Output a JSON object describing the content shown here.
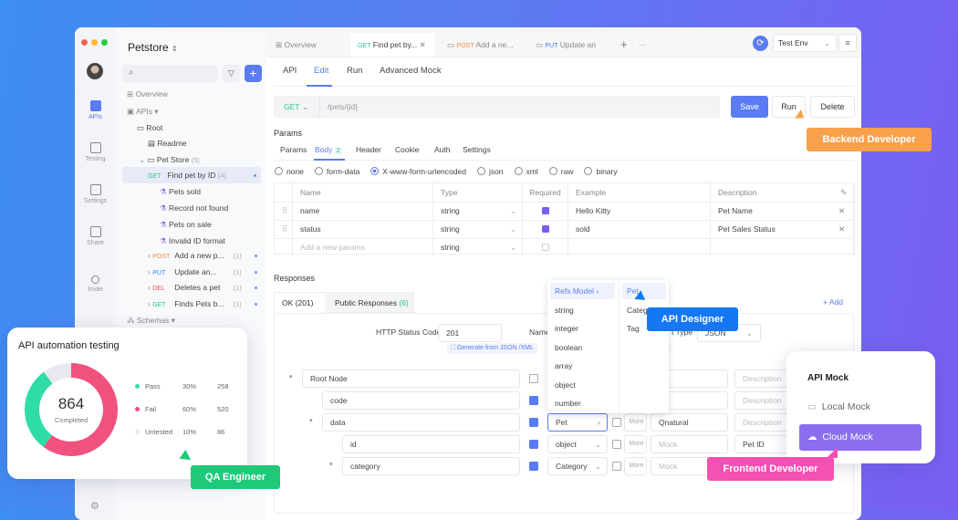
{
  "project": {
    "name": "Petstore"
  },
  "rail": [
    {
      "label": "APIs",
      "active": true
    },
    {
      "label": "Testing"
    },
    {
      "label": "Settings"
    },
    {
      "label": "Share"
    },
    {
      "label": "Invite"
    }
  ],
  "sidebar": {
    "search_placeholder": "",
    "overview": "Overview",
    "apis": "APIs",
    "root": "Root",
    "readme": "Readme",
    "pet_store": "Pet Store",
    "pet_store_count": "(5)",
    "selected": {
      "method": "GET",
      "name": "Find pet by ID",
      "count": "(4)"
    },
    "cases": [
      "Pets sold",
      "Record not found",
      "Pets on sale",
      "Invalid ID format"
    ],
    "endpoints": [
      {
        "method": "POST",
        "name": "Add a new p...",
        "count": "(1)"
      },
      {
        "method": "PUT",
        "name": "Update an...",
        "count": "(1)"
      },
      {
        "method": "DEL",
        "name": "Deletes a pet",
        "count": "(1)"
      },
      {
        "method": "GET",
        "name": "Finds Pets b...",
        "count": "(1)"
      }
    ],
    "schemas": "Schemas"
  },
  "tabs": {
    "overview": "Overview",
    "t1_method": "GET",
    "t1_name": "Find pet by...",
    "t2_method": "POST",
    "t2_name": "Add a ne...",
    "t3_method": "PUT",
    "t3_name": "Update an",
    "env": "Test Env"
  },
  "subtabs": [
    "API",
    "Edit",
    "Run",
    "Advanced Mock"
  ],
  "request": {
    "method": "GET",
    "path": "/pets/{id}",
    "save": "Save",
    "run": "Run",
    "delete": "Delete"
  },
  "params": {
    "title": "Params",
    "tabs": [
      "Params",
      "Body",
      "Header",
      "Cookie",
      "Auth",
      "Settings"
    ],
    "body_count": "2",
    "body_types": [
      "none",
      "form-data",
      "X-www-form-urlencoded",
      "json",
      "xml",
      "raw",
      "binary"
    ],
    "selected_body_type": "X-www-form-urlencoded",
    "columns": [
      "Name",
      "Type",
      "Required",
      "Example",
      "Description"
    ],
    "rows": [
      {
        "name": "name",
        "type": "string",
        "required": true,
        "example": "Hello Kitty",
        "description": "Pet Name"
      },
      {
        "name": "status",
        "type": "string",
        "required": true,
        "example": "sold",
        "description": "Pet Sales Status"
      }
    ],
    "new_placeholder": "Add a new params",
    "new_type": "string"
  },
  "responses": {
    "title": "Responses",
    "tab1": "OK (201)",
    "tab2": "Public Responses",
    "tab2_count": "(6)",
    "add": "+ Add",
    "status_label": "HTTP Status Code",
    "status_value": "201",
    "name_label": "Name",
    "content_type_label": "t Type",
    "content_type": "JSON",
    "generate": "Generate from JSON /XML",
    "generate2": "ate",
    "tree": [
      {
        "name": "Root Node",
        "required": false,
        "type": "",
        "mock": "ck",
        "description": "Description"
      },
      {
        "name": "code",
        "required": true,
        "type": "",
        "mock": "ck",
        "description": "Description"
      },
      {
        "name": "data",
        "required": true,
        "type": "Pet",
        "mock": "Qnatural",
        "description": "Description"
      },
      {
        "name": "id",
        "required": true,
        "type": "object",
        "mock": "Mock",
        "description": "Pet ID"
      },
      {
        "name": "category",
        "required": true,
        "type": "Category",
        "mock": "Mock",
        "description": ""
      }
    ],
    "more": "More"
  },
  "type_dropdown": {
    "left": [
      "Refs Model",
      "string",
      "integer",
      "boolean",
      "array",
      "object",
      "number"
    ],
    "right": [
      "Pet",
      "Category",
      "Tag"
    ]
  },
  "automation": {
    "title": "API automation testing",
    "total": "864",
    "total_label": "Completed",
    "legend": [
      {
        "label": "Pass",
        "percent": "30%",
        "count": "258",
        "color": "#2fdca6"
      },
      {
        "label": "Fail",
        "percent": "60%",
        "count": "520",
        "color": "#f0517e"
      },
      {
        "label": "Untested",
        "percent": "10%",
        "count": "86",
        "color": "#e8e8f0"
      }
    ]
  },
  "mock_card": {
    "title": "API Mock",
    "items": [
      "Local Mock",
      "Cloud Mock"
    ],
    "selected": "Cloud Mock"
  },
  "roles": {
    "backend": "Backend Developer",
    "designer": "API Designer",
    "qa": "QA Engineer",
    "frontend": "Frontend Developer"
  },
  "colors": {
    "primary": "#5a7cf2",
    "backend": "#f9a04b",
    "designer": "#1478f5",
    "qa": "#1ec97a",
    "frontend": "#f550b3",
    "mock_selected": "#8b6ef0"
  }
}
